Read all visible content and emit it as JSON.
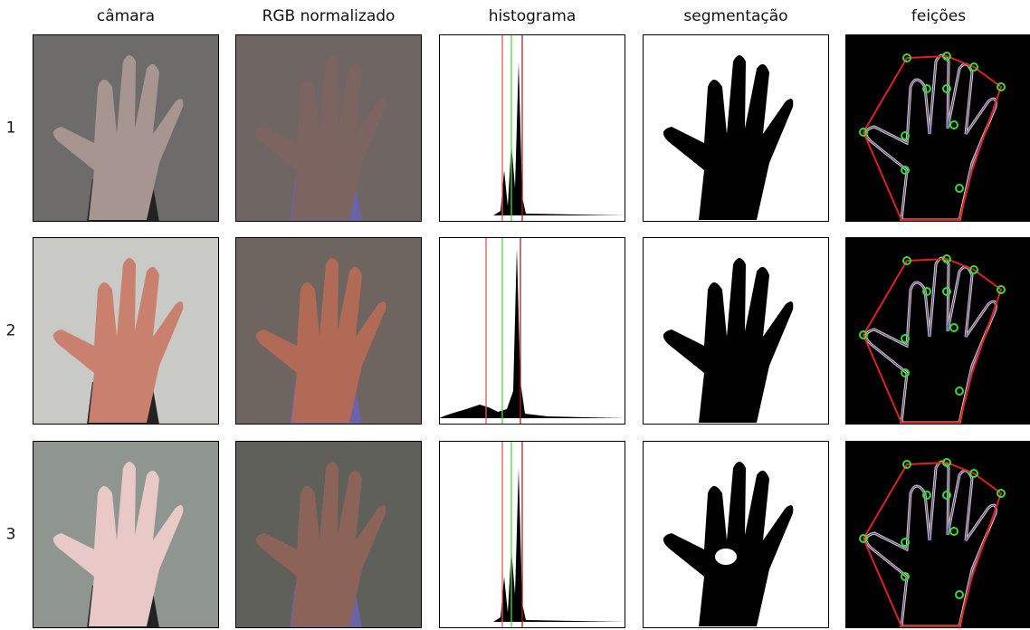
{
  "columns": [
    "câmara",
    "RGB normalizado",
    "histograma",
    "segmentação",
    "feições"
  ],
  "rows": [
    "1",
    "2",
    "3"
  ]
}
